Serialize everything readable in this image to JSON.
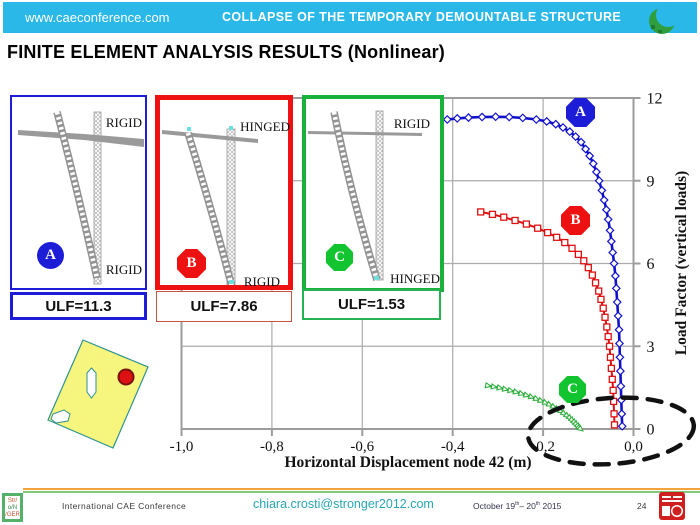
{
  "header": {
    "url": "www.caeconference.com",
    "title": "COLLAPSE OF THE TEMPORARY DEMOUNTABLE STRUCTURE"
  },
  "page_title": "FINITE ELEMENT ANALYSIS RESULTS (Nonlinear)",
  "diagrams": [
    {
      "label": "A",
      "top_support": "RIGID",
      "bottom_support": "RIGID",
      "ulf_label": "ULF=11.3",
      "color": "#1d1dd8"
    },
    {
      "label": "B",
      "top_support": "HINGED",
      "bottom_support": "RIGID",
      "ulf_label": "ULF=7.86",
      "color": "#ee1111"
    },
    {
      "label": "C",
      "top_support": "RIGID",
      "bottom_support": "HINGED",
      "ulf_label": "ULF=1.53",
      "color": "#17b13c"
    }
  ],
  "chart_data": {
    "type": "line",
    "xlabel": "Horizontal Displacement node 42 (m)",
    "ylabel": "Load Factor (vertical loads)",
    "xlim": [
      -1.0,
      0.0
    ],
    "ylim": [
      0,
      12
    ],
    "grid": true,
    "legend_badges": [
      "A",
      "B",
      "C"
    ],
    "xtick_values": [
      -1.0,
      -0.8,
      -0.6,
      -0.4,
      -0.2,
      0.0
    ],
    "xtick_labels": [
      "-1,0",
      "-0,8",
      "-0,6",
      "-0,4",
      "-0,2",
      "0,0"
    ],
    "ytick_values": [
      0,
      3,
      6,
      9,
      12
    ],
    "ytick_labels": [
      "0",
      "3",
      "6",
      "9",
      "12"
    ],
    "series": [
      {
        "name": "A",
        "label": "A",
        "color": "#1111cc",
        "marker": "diamond",
        "width": 2.6,
        "ulf": 11.3,
        "points": [
          [
            -0.412,
            11.22
          ],
          [
            -0.39,
            11.26
          ],
          [
            -0.365,
            11.29
          ],
          [
            -0.335,
            11.31
          ],
          [
            -0.305,
            11.32
          ],
          [
            -0.275,
            11.31
          ],
          [
            -0.245,
            11.28
          ],
          [
            -0.215,
            11.22
          ],
          [
            -0.192,
            11.15
          ],
          [
            -0.172,
            11.05
          ],
          [
            -0.156,
            10.93
          ],
          [
            -0.141,
            10.78
          ],
          [
            -0.128,
            10.6
          ],
          [
            -0.116,
            10.4
          ],
          [
            -0.106,
            10.15
          ],
          [
            -0.097,
            9.9
          ],
          [
            -0.089,
            9.62
          ],
          [
            -0.082,
            9.32
          ],
          [
            -0.076,
            9.0
          ],
          [
            -0.07,
            8.65
          ],
          [
            -0.065,
            8.3
          ],
          [
            -0.06,
            7.95
          ],
          [
            -0.056,
            7.6
          ],
          [
            -0.052,
            7.2
          ],
          [
            -0.049,
            6.8
          ],
          [
            -0.046,
            6.4
          ],
          [
            -0.043,
            6.0
          ],
          [
            -0.04,
            5.55
          ],
          [
            -0.038,
            5.1
          ],
          [
            -0.036,
            4.6
          ],
          [
            -0.034,
            4.1
          ],
          [
            -0.032,
            3.6
          ],
          [
            -0.031,
            3.1
          ],
          [
            -0.03,
            2.6
          ],
          [
            -0.029,
            2.1
          ],
          [
            -0.028,
            1.55
          ],
          [
            -0.027,
            1.05
          ],
          [
            -0.026,
            0.55
          ],
          [
            -0.025,
            0.1
          ]
        ]
      },
      {
        "name": "B",
        "label": "B",
        "color": "#dd1111",
        "marker": "square",
        "width": 2.0,
        "ulf": 7.86,
        "points": [
          [
            -0.338,
            7.87
          ],
          [
            -0.312,
            7.78
          ],
          [
            -0.287,
            7.68
          ],
          [
            -0.262,
            7.56
          ],
          [
            -0.237,
            7.43
          ],
          [
            -0.212,
            7.28
          ],
          [
            -0.19,
            7.12
          ],
          [
            -0.17,
            6.95
          ],
          [
            -0.152,
            6.76
          ],
          [
            -0.136,
            6.55
          ],
          [
            -0.122,
            6.33
          ],
          [
            -0.11,
            6.1
          ],
          [
            -0.1,
            5.85
          ],
          [
            -0.091,
            5.58
          ],
          [
            -0.084,
            5.3
          ],
          [
            -0.077,
            5.0
          ],
          [
            -0.072,
            4.7
          ],
          [
            -0.067,
            4.38
          ],
          [
            -0.063,
            4.05
          ],
          [
            -0.059,
            3.7
          ],
          [
            -0.056,
            3.35
          ],
          [
            -0.053,
            3.0
          ],
          [
            -0.051,
            2.6
          ],
          [
            -0.049,
            2.2
          ],
          [
            -0.047,
            1.8
          ],
          [
            -0.045,
            1.4
          ],
          [
            -0.044,
            1.0
          ],
          [
            -0.043,
            0.55
          ],
          [
            -0.042,
            0.15
          ]
        ]
      },
      {
        "name": "C",
        "label": "C",
        "color": "#2fae3e",
        "marker": "triangle",
        "width": 2.4,
        "ulf": 1.53,
        "points": [
          [
            -0.322,
            1.57
          ],
          [
            -0.309,
            1.53
          ],
          [
            -0.296,
            1.49
          ],
          [
            -0.284,
            1.44
          ],
          [
            -0.272,
            1.39
          ],
          [
            -0.26,
            1.34
          ],
          [
            -0.248,
            1.28
          ],
          [
            -0.237,
            1.22
          ],
          [
            -0.226,
            1.16
          ],
          [
            -0.215,
            1.09
          ],
          [
            -0.205,
            1.02
          ],
          [
            -0.195,
            0.95
          ],
          [
            -0.186,
            0.88
          ],
          [
            -0.177,
            0.8
          ],
          [
            -0.169,
            0.72
          ],
          [
            -0.161,
            0.64
          ],
          [
            -0.154,
            0.56
          ],
          [
            -0.147,
            0.48
          ],
          [
            -0.141,
            0.4
          ],
          [
            -0.136,
            0.32
          ],
          [
            -0.131,
            0.24
          ],
          [
            -0.127,
            0.17
          ],
          [
            -0.123,
            0.1
          ],
          [
            -0.12,
            0.04
          ],
          [
            -0.117,
            0.0
          ]
        ]
      }
    ]
  },
  "footer": {
    "conference": "International CAE Conference",
    "email": "chiara.crosti@stronger2012.com",
    "date": {
      "d1": "October 19",
      "s1": "th",
      "d2": "– 20",
      "s2": "th",
      "d3": " 2015"
    },
    "page": "24",
    "logo_lines": [
      "Str/",
      "o/N",
      "/GER"
    ]
  }
}
